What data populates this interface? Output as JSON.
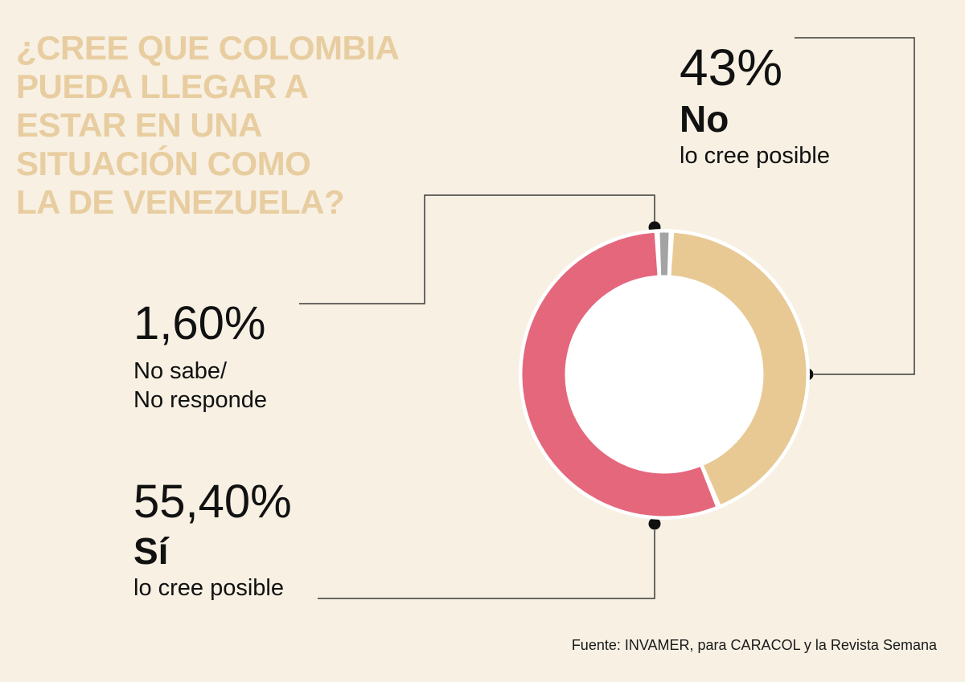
{
  "background": "#f7f0e3",
  "title": {
    "text": "¿Cree que Colombia\npueda llegar a\nestar en una\nsituación como\nla de Venezuela?",
    "color": "#e8cda0"
  },
  "chart_data": {
    "type": "pie",
    "subtype": "donut",
    "title": "¿Cree que Colombia pueda llegar a estar en una situación como la de Venezuela?",
    "legend_position": "callouts",
    "segments": [
      {
        "label": "No lo cree posible",
        "value": 43,
        "value_label": "43%",
        "color": "#e8c994"
      },
      {
        "label": "Sí lo cree posible",
        "value": 55.4,
        "value_label": "55,40%",
        "color": "#e4677c"
      },
      {
        "label": "No sabe/No responde",
        "value": 1.6,
        "value_label": "1,60%",
        "color": "#a3a3a3"
      }
    ],
    "source": "Fuente: INVAMER, para CARACOL y la Revista Semana"
  },
  "callouts": {
    "no": {
      "pct": "43%",
      "label": "No",
      "sublabel": "lo cree posible"
    },
    "ns": {
      "pct": "1,60%",
      "sublabel": "No sabe/\nNo responde"
    },
    "si": {
      "pct": "55,40%",
      "label": "Sí",
      "sublabel": "lo cree posible"
    }
  },
  "source": "Fuente: INVAMER, para CARACOL y la Revista Semana"
}
